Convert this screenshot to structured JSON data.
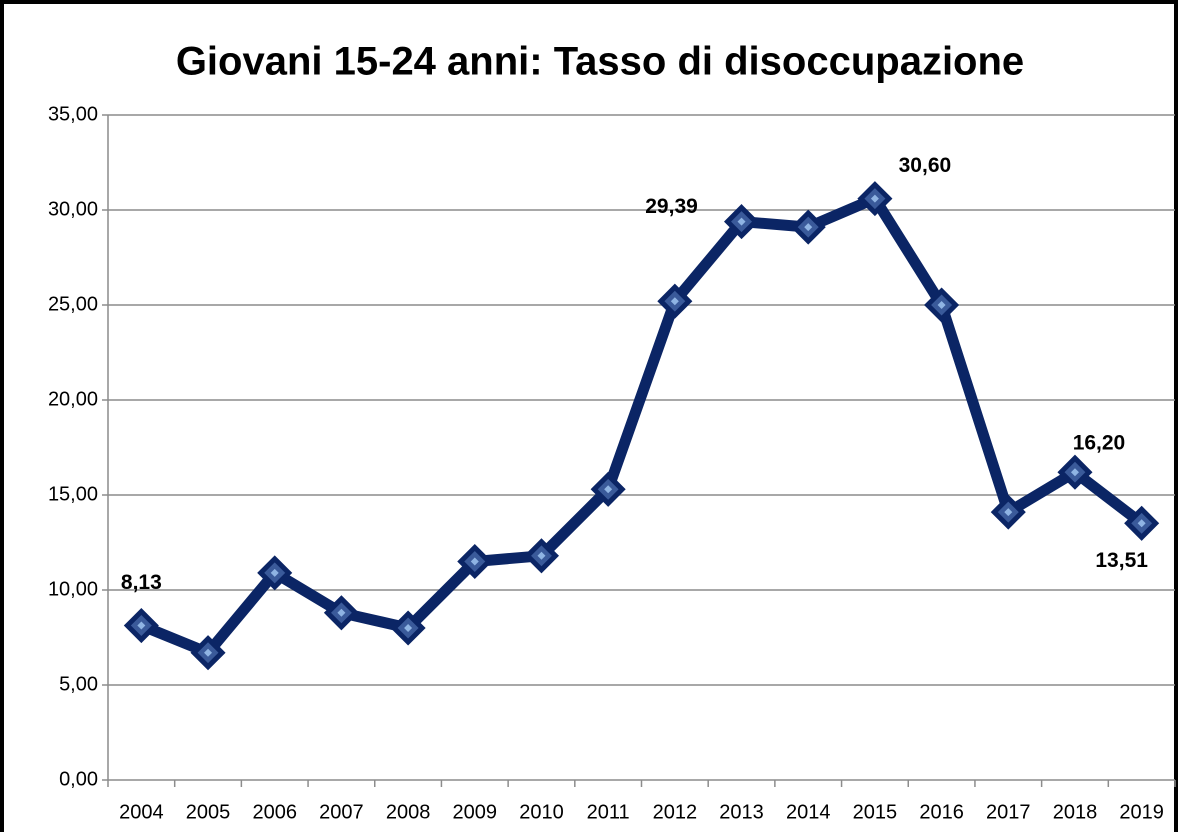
{
  "chart_data": {
    "type": "line",
    "title": "Giovani 15-24 anni: Tasso di disoccupazione",
    "categories": [
      "2004",
      "2005",
      "2006",
      "2007",
      "2008",
      "2009",
      "2010",
      "2011",
      "2012",
      "2013",
      "2014",
      "2015",
      "2016",
      "2017",
      "2018",
      "2019"
    ],
    "series": [
      {
        "color": "#0b2565",
        "values": [
          8.13,
          6.7,
          10.9,
          8.8,
          8.0,
          11.5,
          11.8,
          15.3,
          25.2,
          29.39,
          29.1,
          30.6,
          25.0,
          14.1,
          16.2,
          13.51
        ],
        "value_labels": [
          "8,13",
          null,
          null,
          null,
          null,
          null,
          null,
          null,
          null,
          "29,39",
          null,
          "30,60",
          null,
          null,
          "16,20",
          "13,51"
        ]
      }
    ],
    "ylim": [
      0,
      35
    ],
    "yticks": [
      {
        "value": 0,
        "label": "0,00"
      },
      {
        "value": 5,
        "label": "5,00"
      },
      {
        "value": 10,
        "label": "10,00"
      },
      {
        "value": 15,
        "label": "15,00"
      },
      {
        "value": 20,
        "label": "20,00"
      },
      {
        "value": 25,
        "label": "25,00"
      },
      {
        "value": 30,
        "label": "30,00"
      },
      {
        "value": 35,
        "label": "35,00"
      }
    ],
    "grid": true
  }
}
